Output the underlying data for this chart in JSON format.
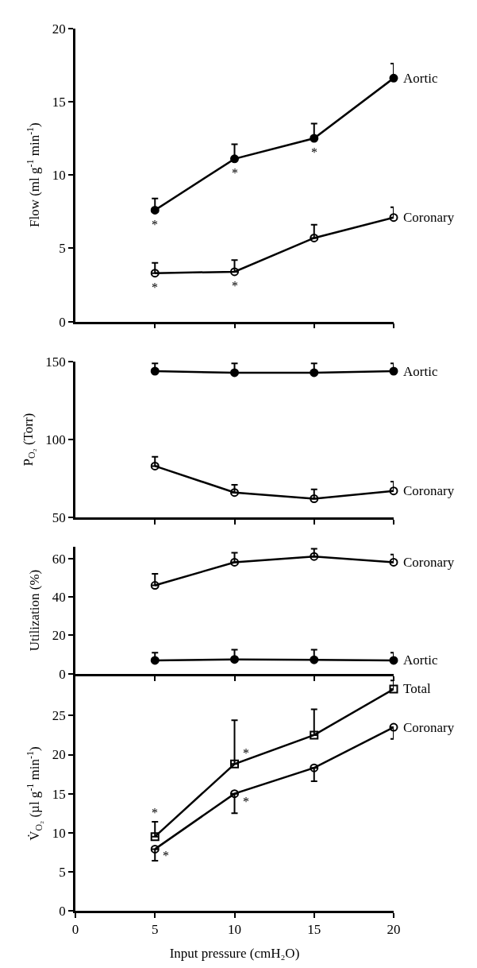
{
  "chart_data": [
    {
      "type": "line",
      "ylabel": "Flow (ml g$^{-1}$ min$^{-1}$)",
      "xlim": [
        0,
        20
      ],
      "xticks": [
        {
          "value": 5,
          "label": null
        },
        {
          "value": 10,
          "label": null
        },
        {
          "value": 15,
          "label": null
        },
        {
          "value": 20,
          "label": null
        }
      ],
      "ylim": [
        0,
        20
      ],
      "yticks": [
        0,
        5,
        10,
        15,
        20
      ],
      "tick_labels": "y",
      "grid": false,
      "line_style": "solid",
      "x": [
        5,
        10,
        15,
        20
      ],
      "series": [
        {
          "name": "Aortic",
          "color": "#000000",
          "marker": "circle",
          "values": [
            7.6,
            11.1,
            12.5,
            16.6
          ],
          "errors": [
            [
              7.6,
              8.4
            ],
            [
              11.1,
              12.1
            ],
            [
              12.5,
              13.5
            ],
            [
              16.6,
              17.6
            ]
          ]
        },
        {
          "name": "Coronary",
          "color": "#000000",
          "marker": "circle-open",
          "values": [
            3.3,
            3.4,
            5.7,
            7.1
          ],
          "errors": [
            [
              3.3,
              4.0
            ],
            [
              3.4,
              4.2
            ],
            [
              5.7,
              6.6
            ],
            [
              7.1,
              7.8
            ]
          ]
        }
      ],
      "annotations": [
        {
          "text": "*",
          "x": 5,
          "y": 7.6
        },
        {
          "text": "*",
          "x": 10,
          "y": 11.1
        },
        {
          "text": "*",
          "x": 15,
          "y": 12.5
        },
        {
          "text": "*",
          "x": 5,
          "y": 3.3
        },
        {
          "text": "*",
          "x": 10,
          "y": 3.4
        }
      ]
    },
    {
      "type": "line",
      "ylabel": "P$_{O₂}$ (Torr)",
      "xlim": [
        0,
        20
      ],
      "xticks": [
        {
          "value": 5,
          "label": null
        },
        {
          "value": 10,
          "label": null
        },
        {
          "value": 15,
          "label": null
        },
        {
          "value": 20,
          "label": null
        }
      ],
      "ylim": [
        50,
        150
      ],
      "yticks": [
        50,
        100,
        150
      ],
      "tick_labels": "y",
      "grid": false,
      "line_style": "solid",
      "x": [
        5,
        10,
        15,
        20
      ],
      "series": [
        {
          "name": "Aortic",
          "color": "#000000",
          "marker": "circle",
          "values": [
            144,
            143,
            143,
            144
          ],
          "errors": [
            [
              144,
              149
            ],
            [
              143,
              149
            ],
            [
              143,
              149
            ],
            [
              144,
              149
            ]
          ]
        },
        {
          "name": "Coronary",
          "color": "#000000",
          "marker": "circle-open",
          "values": [
            83,
            66,
            62,
            67
          ],
          "errors": [
            [
              83,
              89
            ],
            [
              66,
              71
            ],
            [
              62,
              68
            ],
            [
              67,
              73
            ]
          ]
        }
      ]
    },
    {
      "type": "line",
      "ylabel": "Utilization (%)",
      "xlim": [
        0,
        20
      ],
      "xticks": [
        {
          "value": 5,
          "label": null
        },
        {
          "value": 10,
          "label": null
        },
        {
          "value": 15,
          "label": null
        },
        {
          "value": 20,
          "label": null
        }
      ],
      "ylim": [
        0,
        66
      ],
      "yticks": [
        0,
        20,
        40,
        60
      ],
      "tick_labels": "y",
      "grid": false,
      "line_style": "solid",
      "x": [
        5,
        10,
        15,
        20
      ],
      "series": [
        {
          "name": "Coronary",
          "color": "#000000",
          "marker": "circle-open",
          "values": [
            46,
            58,
            61,
            58
          ],
          "errors": [
            [
              46,
              52
            ],
            [
              58,
              63
            ],
            [
              61,
              65
            ],
            [
              58,
              62
            ]
          ]
        },
        {
          "name": "Aortic",
          "color": "#000000",
          "marker": "circle",
          "values": [
            7,
            7.5,
            7.3,
            7
          ],
          "errors": [
            [
              7,
              11
            ],
            [
              7.5,
              12.5
            ],
            [
              7.3,
              12.5
            ],
            [
              7,
              11
            ]
          ]
        }
      ]
    },
    {
      "type": "line",
      "ylabel": "V̇$_{O₂}$ (µl g$^{-1}$ min$^{-1}$)",
      "xlabel": "Input pressure (cmH₂O)",
      "xlim": [
        0,
        20
      ],
      "xticks": [
        0,
        5,
        10,
        15,
        20
      ],
      "ylim": [
        0,
        30
      ],
      "yticks": [
        0,
        5,
        10,
        15,
        20,
        25
      ],
      "grid": false,
      "line_style": "solid",
      "x": [
        5,
        10,
        15,
        20
      ],
      "series": [
        {
          "name": "Total",
          "color": "#000000",
          "marker": "square-open",
          "values": [
            9.5,
            18.8,
            22.5,
            28.4
          ],
          "errors": [
            [
              9.5,
              11.4
            ],
            [
              18.8,
              24.4
            ],
            [
              22.5,
              25.8
            ],
            [
              28.4,
              29.5
            ]
          ]
        },
        {
          "name": "Coronary",
          "color": "#000000",
          "marker": "circle-open",
          "values": [
            7.9,
            15.0,
            18.3,
            23.5
          ],
          "errors": [
            [
              6.4,
              7.9
            ],
            [
              12.5,
              15.0
            ],
            [
              16.6,
              18.3
            ],
            [
              22.0,
              23.5
            ]
          ]
        }
      ],
      "annotations": [
        {
          "text": "*",
          "x": 5,
          "y": 9.5
        },
        {
          "text": "*",
          "x": 10,
          "y": 18.8
        },
        {
          "text": "*",
          "x": 10,
          "y": 15.0
        },
        {
          "text": "*",
          "x": 5,
          "y": 7.9
        }
      ]
    }
  ]
}
